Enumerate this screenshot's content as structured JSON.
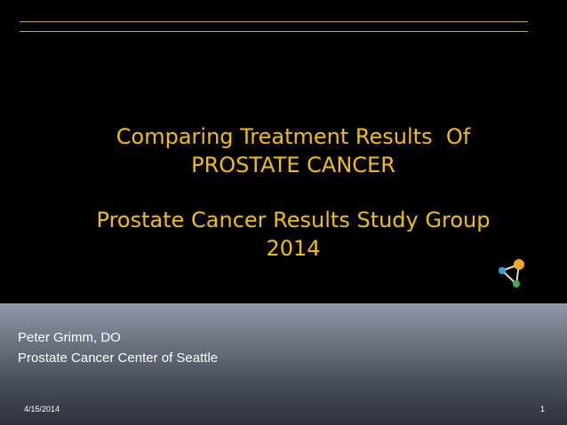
{
  "slide": {
    "title_lines": [
      "Comparing Treatment Results  Of",
      "PROSTATE CANCER"
    ],
    "subtitle_lines": [
      "Prostate Cancer Results Study Group",
      "2014"
    ],
    "presenter_name": "Peter Grimm, DO",
    "presenter_affiliation": "Prostate Cancer  Center of Seattle",
    "date": "4/15/2014",
    "page_number": "1"
  },
  "colors": {
    "background": "#000000",
    "title_text": "#f0c000",
    "rule": "#c8a24a",
    "footer_text": "#ffffff",
    "logo_blue": "#3aa6e0",
    "logo_orange": "#f5a623",
    "logo_green": "#3cb043"
  },
  "icons": {
    "logo": "molecule-logo-icon"
  }
}
